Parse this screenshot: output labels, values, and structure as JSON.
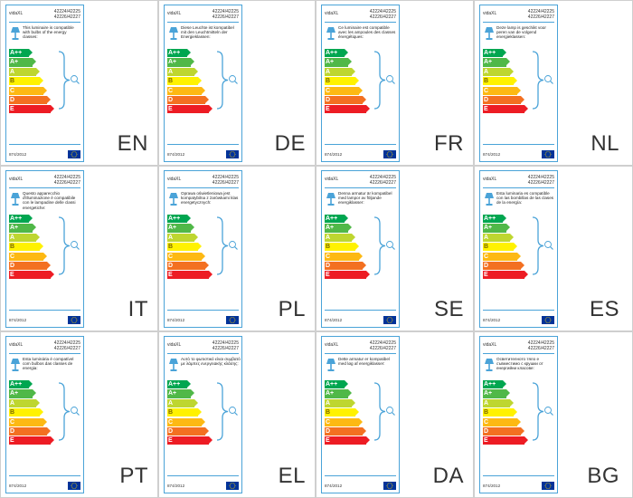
{
  "brand": "vidaXL",
  "codes": [
    "42224/42225",
    "42226/42227"
  ],
  "regulation": "874/2012",
  "energy_classes": [
    "A++",
    "A+",
    "A",
    "B",
    "C",
    "D",
    "E"
  ],
  "class_colors": [
    "#00a650",
    "#50b848",
    "#bed630",
    "#fff200",
    "#fdb913",
    "#f37021",
    "#ed1c24"
  ],
  "accent_color": "#4aa3d8",
  "icons": [
    "lamp-icon",
    "bulb-icon",
    "brace-icon",
    "eu-flag-icon"
  ],
  "panels": [
    {
      "lang": "EN",
      "text": "This luminaire is compatible with bulbs of the energy classes:"
    },
    {
      "lang": "DE",
      "text": "Diese Leuchte ist kompatibel mit den Leuchtmitteln der Energieklassen:"
    },
    {
      "lang": "FR",
      "text": "Ce luminaire est compatible avec les ampoules des classes énergétiques:"
    },
    {
      "lang": "NL",
      "text": "Deze lamp is geschikt voor peren van de volgend energieklassen:"
    },
    {
      "lang": "IT",
      "text": "Questo apparecchio d'illuminazione è compatibile con le lampadine delle classi energetiche:"
    },
    {
      "lang": "PL",
      "text": "Oprawa oświetleniowa jest kompatybilna z żarówkami klas energetycznych:"
    },
    {
      "lang": "SE",
      "text": "Denna armatur är kompatibel med lampor av följande energiklasser:"
    },
    {
      "lang": "ES",
      "text": "Esta luminaria es compatible con las bombillas de las clases de la energía:"
    },
    {
      "lang": "PT",
      "text": "Esta luminária é compatível com bulbos das classes de energia:"
    },
    {
      "lang": "EL",
      "text": "Αυτό το φωτιστικό είναι συμβατό με λάμπες ενεργειακής κλάσης:"
    },
    {
      "lang": "DA",
      "text": "Dette armatur er kompatibel med løg af energiklasser:"
    },
    {
      "lang": "BG",
      "text": "Осветителното тяло е съвместимо с крушки от енергийни класове:"
    }
  ]
}
